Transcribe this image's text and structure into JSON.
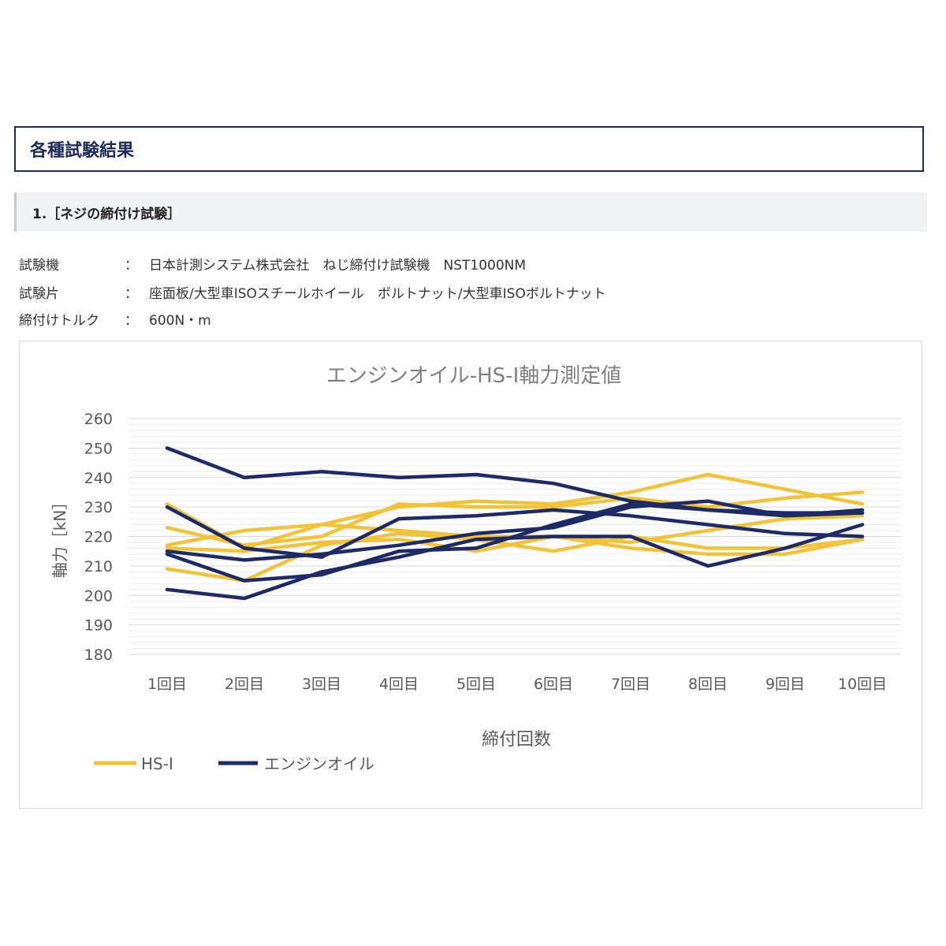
{
  "header": {
    "title": "各種試験結果"
  },
  "section": {
    "title": "1.［ネジの締付け試験］"
  },
  "specs": [
    {
      "key": "試験機",
      "sep": "：",
      "value": "日本計測システム株式会社　ねじ締付け試験機　NST1000NM"
    },
    {
      "key": "試験片",
      "sep": "：",
      "value": "座面板/大型車ISOスチールホイール　ボルトナット/大型車ISOボルトナット"
    },
    {
      "key": "締付けトルク",
      "sep": "：",
      "value": "600N・m"
    }
  ],
  "colors": {
    "hs": "#f0c338",
    "oil": "#1e2a66",
    "navy": "#1e2a5a"
  },
  "chart_data": {
    "type": "line",
    "title": "エンジンオイル-HS-Ⅰ軸力測定値",
    "xlabel": "締付回数",
    "ylabel": "軸力［kN］",
    "ylim": [
      180,
      260
    ],
    "yticks": [
      180,
      190,
      200,
      210,
      220,
      230,
      240,
      250,
      260
    ],
    "categories": [
      "1回目",
      "2回目",
      "3回目",
      "4回目",
      "5回目",
      "6回目",
      "7回目",
      "8回目",
      "9回目",
      "10回目"
    ],
    "grid": true,
    "legend_position": "bottom-left",
    "legend": [
      {
        "label": "HS-Ⅰ",
        "color": "#f0c338"
      },
      {
        "label": "エンジンオイル",
        "color": "#1e2a66"
      }
    ],
    "series": [
      {
        "group": "HS-Ⅰ",
        "values": [
          231,
          216,
          224,
          230,
          232,
          231,
          235,
          241,
          236,
          231
        ]
      },
      {
        "group": "HS-Ⅰ",
        "values": [
          223,
          217,
          220,
          231,
          230,
          230,
          233,
          230,
          233,
          235
        ]
      },
      {
        "group": "HS-Ⅰ",
        "values": [
          217,
          222,
          224,
          222,
          220,
          220,
          218,
          222,
          226,
          227
        ]
      },
      {
        "group": "HS-Ⅰ",
        "values": [
          216,
          215,
          218,
          219,
          215,
          220,
          216,
          214,
          214,
          219
        ]
      },
      {
        "group": "HS-Ⅰ",
        "values": [
          209,
          205,
          217,
          221,
          219,
          215,
          220,
          216,
          216,
          219
        ]
      },
      {
        "group": "エンジンオイル",
        "values": [
          250,
          240,
          242,
          240,
          241,
          238,
          232,
          229,
          228,
          228
        ]
      },
      {
        "group": "エンジンオイル",
        "values": [
          230,
          216,
          213,
          226,
          227,
          229,
          227,
          224,
          221,
          220
        ]
      },
      {
        "group": "エンジンオイル",
        "values": [
          215,
          212,
          214,
          217,
          221,
          223,
          230,
          232,
          227,
          229
        ]
      },
      {
        "group": "エンジンオイル",
        "values": [
          214,
          205,
          207,
          215,
          216,
          224,
          231,
          229,
          227,
          228
        ]
      },
      {
        "group": "エンジンオイル",
        "values": [
          202,
          199,
          208,
          213,
          219,
          220,
          220,
          210,
          216,
          224
        ]
      }
    ]
  }
}
